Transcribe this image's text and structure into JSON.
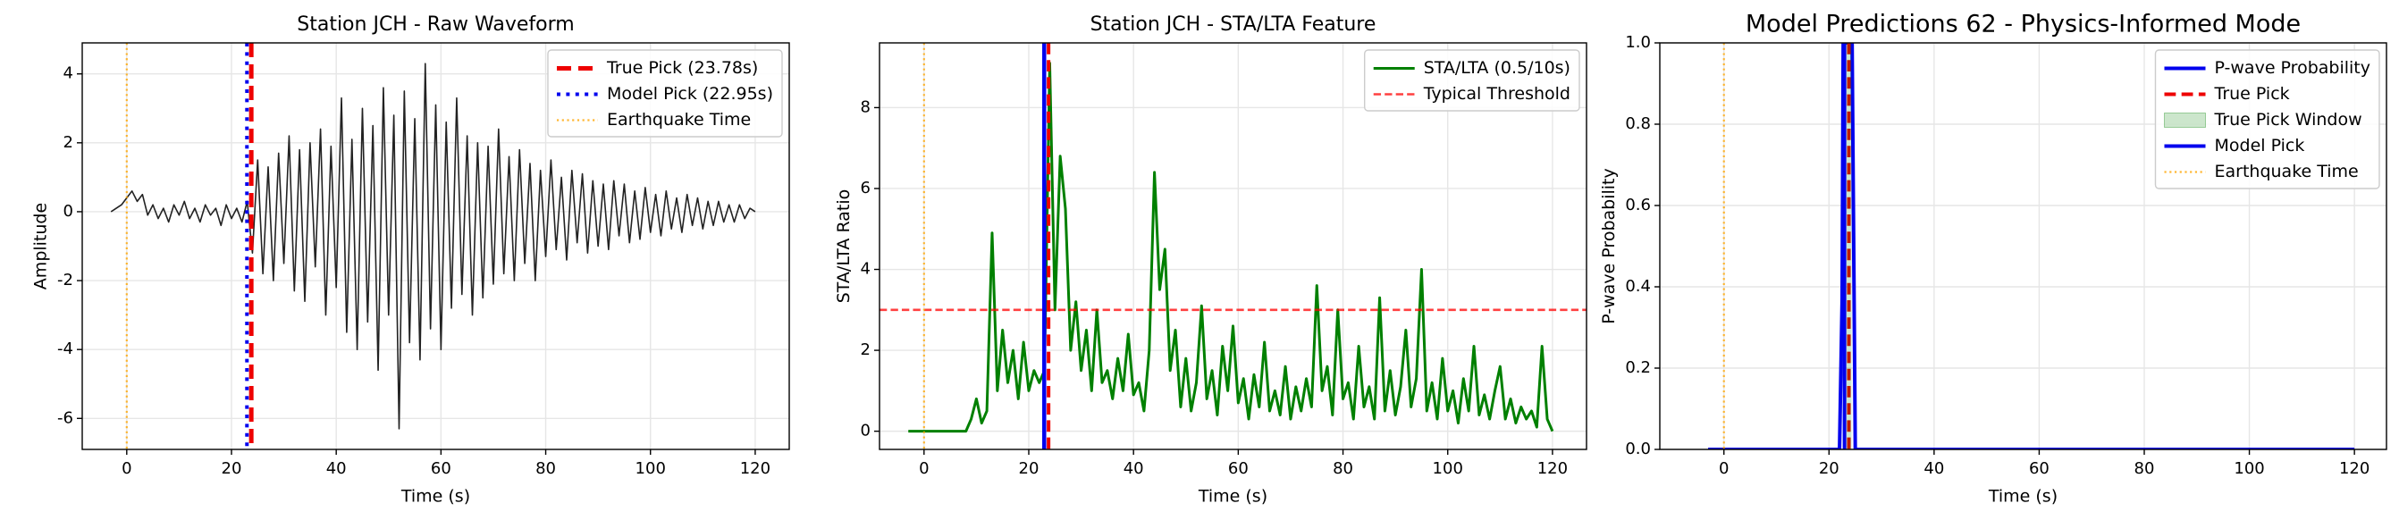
{
  "chart_data": [
    {
      "type": "line",
      "title": "Station JCH - Raw Waveform",
      "xlabel": "Time (s)",
      "ylabel": "Amplitude",
      "xlim": [
        -8.5,
        126.5
      ],
      "xticks": [
        0,
        20,
        40,
        60,
        80,
        100,
        120
      ],
      "ylim": [
        -6.9,
        4.9
      ],
      "yticks": [
        -6,
        -4,
        -2,
        0,
        2,
        4
      ],
      "grid": true,
      "legend": "upper right",
      "x": [
        -3,
        -2,
        -1,
        0,
        1,
        2,
        3,
        4,
        5,
        6,
        7,
        8,
        9,
        10,
        11,
        12,
        13,
        14,
        15,
        16,
        17,
        18,
        19,
        20,
        21,
        22,
        23,
        24,
        25,
        26,
        27,
        28,
        29,
        30,
        31,
        32,
        33,
        34,
        35,
        36,
        37,
        38,
        39,
        40,
        41,
        42,
        43,
        44,
        45,
        46,
        47,
        48,
        49,
        50,
        51,
        52,
        53,
        54,
        55,
        56,
        57,
        58,
        59,
        60,
        61,
        62,
        63,
        64,
        65,
        66,
        67,
        68,
        69,
        70,
        71,
        72,
        73,
        74,
        75,
        76,
        77,
        78,
        79,
        80,
        81,
        82,
        83,
        84,
        85,
        86,
        87,
        88,
        89,
        90,
        91,
        92,
        93,
        94,
        95,
        96,
        97,
        98,
        99,
        100,
        101,
        102,
        103,
        104,
        105,
        106,
        107,
        108,
        109,
        110,
        111,
        112,
        113,
        114,
        115,
        116,
        117,
        118,
        119,
        120
      ],
      "series": [
        {
          "kind": "line",
          "color": "#222222",
          "width": 1.6,
          "dash": "solid",
          "values": [
            0,
            0.1,
            0.2,
            0.4,
            0.6,
            0.3,
            0.5,
            -0.1,
            0.2,
            -0.2,
            0.1,
            -0.3,
            0.2,
            -0.1,
            0.3,
            -0.2,
            0.1,
            -0.3,
            0.2,
            -0.1,
            0.1,
            -0.4,
            0.2,
            -0.2,
            0.1,
            -0.3,
            0.3,
            -1.2,
            1.5,
            -1.8,
            1.3,
            -2.0,
            1.7,
            -1.5,
            2.2,
            -2.3,
            1.8,
            -2.6,
            2.0,
            -1.6,
            2.4,
            -3.0,
            1.9,
            -2.2,
            3.3,
            -3.5,
            2.1,
            -4.0,
            3.0,
            -3.2,
            2.5,
            -4.6,
            3.6,
            -3.0,
            2.8,
            -6.3,
            3.5,
            -3.8,
            2.7,
            -4.3,
            4.3,
            -3.4,
            3.1,
            -4.0,
            2.6,
            -2.8,
            3.3,
            -2.4,
            2.2,
            -3.0,
            2.0,
            -2.5,
            1.9,
            -2.1,
            2.4,
            -1.8,
            1.6,
            -2.0,
            1.8,
            -1.5,
            1.4,
            -2.0,
            1.2,
            -1.3,
            1.5,
            -1.1,
            1.0,
            -1.4,
            1.2,
            -0.9,
            1.1,
            -1.2,
            0.9,
            -1.0,
            0.8,
            -1.1,
            0.9,
            -0.7,
            0.8,
            -0.9,
            0.6,
            -0.8,
            0.7,
            -0.6,
            0.5,
            -0.7,
            0.6,
            -0.5,
            0.4,
            -0.6,
            0.5,
            -0.4,
            0.4,
            -0.5,
            0.3,
            -0.4,
            0.3,
            -0.3,
            0.2,
            -0.3,
            0.2,
            -0.2,
            0.1,
            0.0
          ]
        },
        {
          "kind": "vline",
          "name": "True Pick (23.78s)",
          "x": 23.78,
          "color": "#ee0000",
          "width": 5,
          "dash": "dashed"
        },
        {
          "kind": "vline",
          "name": "Model Pick (22.95s)",
          "x": 22.95,
          "color": "#0000ee",
          "width": 4,
          "dash": "dotted"
        },
        {
          "kind": "vline",
          "name": "Earthquake Time",
          "x": 0,
          "color": "#ffa500",
          "width": 2.2,
          "dash": "dotted",
          "opacity": 0.8
        }
      ]
    },
    {
      "type": "line",
      "title": "Station JCH - STA/LTA Feature",
      "xlabel": "Time (s)",
      "ylabel": "STA/LTA Ratio",
      "xlim": [
        -8.5,
        126.5
      ],
      "xticks": [
        0,
        20,
        40,
        60,
        80,
        100,
        120
      ],
      "ylim": [
        -0.45,
        9.6
      ],
      "yticks": [
        0,
        2,
        4,
        6,
        8
      ],
      "grid": true,
      "legend": "upper right",
      "x": [
        -3,
        -2,
        -1,
        0,
        1,
        2,
        3,
        4,
        5,
        6,
        7,
        8,
        9,
        10,
        11,
        12,
        13,
        14,
        15,
        16,
        17,
        18,
        19,
        20,
        21,
        22,
        23,
        24,
        25,
        26,
        27,
        28,
        29,
        30,
        31,
        32,
        33,
        34,
        35,
        36,
        37,
        38,
        39,
        40,
        41,
        42,
        43,
        44,
        45,
        46,
        47,
        48,
        49,
        50,
        51,
        52,
        53,
        54,
        55,
        56,
        57,
        58,
        59,
        60,
        61,
        62,
        63,
        64,
        65,
        66,
        67,
        68,
        69,
        70,
        71,
        72,
        73,
        74,
        75,
        76,
        77,
        78,
        79,
        80,
        81,
        82,
        83,
        84,
        85,
        86,
        87,
        88,
        89,
        90,
        91,
        92,
        93,
        94,
        95,
        96,
        97,
        98,
        99,
        100,
        101,
        102,
        103,
        104,
        105,
        106,
        107,
        108,
        109,
        110,
        111,
        112,
        113,
        114,
        115,
        116,
        117,
        118,
        119,
        120
      ],
      "series": [
        {
          "kind": "line",
          "name": "STA/LTA (0.5/10s)",
          "color": "#008000",
          "width": 3,
          "dash": "solid",
          "values": [
            0,
            0,
            0,
            0,
            0,
            0,
            0,
            0,
            0,
            0,
            0,
            0,
            0.3,
            0.8,
            0.2,
            0.5,
            4.9,
            1.0,
            2.5,
            1.2,
            2.0,
            0.8,
            2.2,
            1.0,
            1.5,
            1.2,
            1.5,
            9.1,
            3.0,
            6.8,
            5.5,
            2.0,
            3.2,
            1.5,
            2.5,
            1.0,
            3.0,
            1.2,
            1.5,
            0.8,
            1.8,
            1.0,
            2.4,
            0.9,
            1.2,
            0.5,
            2.0,
            6.4,
            3.5,
            4.5,
            1.5,
            2.5,
            0.6,
            1.8,
            0.5,
            1.2,
            3.1,
            0.8,
            1.5,
            0.4,
            2.1,
            1.0,
            2.6,
            0.7,
            1.3,
            0.3,
            1.4,
            0.6,
            2.2,
            0.5,
            1.0,
            0.4,
            1.6,
            0.3,
            1.1,
            0.5,
            1.3,
            0.6,
            3.6,
            1.0,
            1.6,
            0.4,
            3.0,
            0.8,
            1.2,
            0.3,
            2.1,
            0.6,
            1.1,
            0.3,
            3.3,
            0.5,
            1.5,
            0.4,
            1.1,
            2.5,
            0.6,
            1.3,
            4.0,
            0.5,
            1.2,
            0.3,
            1.8,
            0.5,
            1.0,
            0.2,
            1.3,
            0.5,
            2.1,
            0.4,
            0.9,
            0.3,
            1.0,
            1.6,
            0.3,
            0.8,
            0.2,
            0.6,
            0.3,
            0.5,
            0.1,
            2.1,
            0.3,
            0.0
          ]
        },
        {
          "kind": "hline",
          "name": "Typical Threshold",
          "y": 3,
          "color": "#ff0000",
          "width": 2.6,
          "dash": "dashed",
          "opacity": 0.75
        },
        {
          "kind": "vline",
          "x": 0,
          "color": "#ffa500",
          "width": 2.2,
          "dash": "dotted",
          "opacity": 0.8
        },
        {
          "kind": "vline",
          "x": 22.95,
          "color": "#0000ee",
          "width": 4.5,
          "dash": "solid"
        },
        {
          "kind": "vline",
          "x": 23.78,
          "color": "#ee0000",
          "width": 4,
          "dash": "dashed"
        }
      ]
    },
    {
      "type": "line",
      "title": "Model Predictions 62 - Physics-Informed Mode",
      "xlabel": "Time (s)",
      "ylabel": "P-wave Probability",
      "xlim": [
        -12.2,
        126.1
      ],
      "xticks": [
        0,
        20,
        40,
        60,
        80,
        100,
        120
      ],
      "ylim": [
        0,
        1
      ],
      "yticks": [
        {
          "value": 0,
          "label": "0.0"
        },
        0.2,
        0.4,
        0.6,
        0.8,
        {
          "value": 1,
          "label": "1.0"
        }
      ],
      "grid": true,
      "legend": "upper right",
      "series": [
        {
          "kind": "line",
          "name": "P-wave Probability",
          "color": "#0000ee",
          "width": 4,
          "dash": "solid",
          "x": [
            -3,
            22,
            22.5,
            22.7,
            23,
            23.5,
            24,
            24.4,
            25,
            120
          ],
          "values": [
            0,
            0,
            0.37,
            1,
            1,
            1,
            1,
            1,
            0,
            0
          ]
        },
        {
          "kind": "vline",
          "name": "True Pick",
          "x": 23.78,
          "color": "#ee0000",
          "width": 4,
          "dash": "dashed"
        },
        {
          "kind": "span",
          "name": "True Pick Window",
          "x": [
            23.28,
            24.28
          ],
          "color": "#008000",
          "opacity": 0.2
        },
        {
          "kind": "vline",
          "name": "Model Pick",
          "x": 22.95,
          "color": "#0000ee",
          "width": 4,
          "dash": "solid"
        },
        {
          "kind": "vline",
          "name": "Earthquake Time",
          "x": 0,
          "color": "#ffa500",
          "width": 2.2,
          "dash": "dotted",
          "opacity": 0.8
        }
      ]
    }
  ]
}
